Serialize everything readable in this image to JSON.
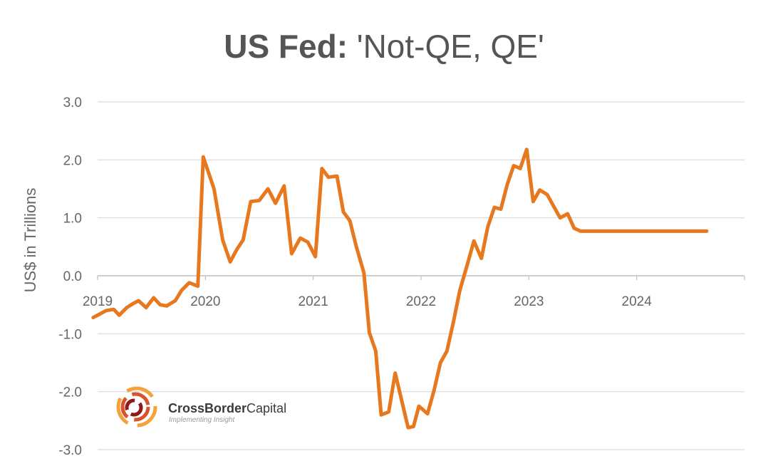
{
  "title": {
    "bold": "US Fed:",
    "rest": "'Not-QE, QE'"
  },
  "logo": {
    "name_bold": "CrossBorder",
    "name_rest": "Capital",
    "tagline": "Implementing Insight"
  },
  "colors": {
    "line": "#E8781E",
    "grid": "#d9d9d9",
    "text": "#666666"
  },
  "chart_data": {
    "type": "line",
    "title": "US Fed: 'Not-QE, QE'",
    "xlabel": "",
    "ylabel": "US$ in Trillions",
    "ylim": [
      -3.0,
      3.0
    ],
    "yticks": [
      3.0,
      2.0,
      1.0,
      0.0,
      -1.0,
      -2.0,
      -3.0
    ],
    "ytick_labels": [
      "3.0",
      "2.0",
      "1.0",
      "0.0",
      "-1.0",
      "-2.0",
      "-3.0"
    ],
    "xlim": [
      2019.0,
      2025.0
    ],
    "xticks": [
      2019,
      2020,
      2021,
      2022,
      2023,
      2024
    ],
    "xtick_labels": [
      "2019",
      "2020",
      "2021",
      "2022",
      "2023",
      "2024"
    ],
    "grid": true,
    "series": [
      {
        "name": "US Fed",
        "x": [
          2018.96,
          2019.03,
          2019.08,
          2019.15,
          2019.2,
          2019.27,
          2019.33,
          2019.38,
          2019.45,
          2019.52,
          2019.58,
          2019.64,
          2019.72,
          2019.78,
          2019.85,
          2019.93,
          2019.98,
          2020.08,
          2020.16,
          2020.23,
          2020.29,
          2020.35,
          2020.42,
          2020.5,
          2020.58,
          2020.65,
          2020.73,
          2020.8,
          2020.88,
          2020.95,
          2021.02,
          2021.08,
          2021.14,
          2021.22,
          2021.28,
          2021.34,
          2021.4,
          2021.47,
          2021.52,
          2021.58,
          2021.63,
          2021.7,
          2021.76,
          2021.82,
          2021.88,
          2021.93,
          2021.98,
          2022.06,
          2022.12,
          2022.18,
          2022.24,
          2022.3,
          2022.36,
          2022.43,
          2022.49,
          2022.56,
          2022.62,
          2022.68,
          2022.74,
          2022.8,
          2022.86,
          2022.92,
          2022.98,
          2023.04,
          2023.1,
          2023.17,
          2023.23,
          2023.29,
          2023.36,
          2023.42,
          2023.48,
          2023.54,
          2023.61,
          2023.67,
          2023.73,
          2023.8,
          2023.86,
          2023.92,
          2023.97,
          2024.02,
          2024.07,
          2024.12,
          2024.18,
          2024.24,
          2024.3,
          2024.36,
          2024.42,
          2024.48,
          2024.54,
          2024.6,
          2024.65,
          2024.72,
          2024.78
        ],
        "values": [
          -0.72,
          -0.65,
          -0.6,
          -0.58,
          -0.68,
          -0.55,
          -0.48,
          -0.43,
          -0.55,
          -0.38,
          -0.5,
          -0.52,
          -0.43,
          -0.25,
          -0.12,
          -0.18,
          2.05,
          1.5,
          0.62,
          0.24,
          0.45,
          0.62,
          1.28,
          1.3,
          1.5,
          1.25,
          1.55,
          0.38,
          0.65,
          0.58,
          0.33,
          1.85,
          1.7,
          1.72,
          1.1,
          0.95,
          0.5,
          0.05,
          -0.98,
          -1.3,
          -2.4,
          -2.35,
          -1.68,
          -2.15,
          -2.62,
          -2.6,
          -2.25,
          -2.38,
          -1.98,
          -1.5,
          -1.3,
          -0.8,
          -0.25,
          0.2,
          0.6,
          0.3,
          0.85,
          1.18,
          1.15,
          1.58,
          1.9,
          1.85,
          2.18,
          1.28,
          1.48,
          1.4,
          1.2,
          1.0,
          1.07,
          0.82,
          0.77,
          0.77,
          0.77,
          0.77,
          0.77,
          0.77,
          0.77,
          0.77,
          0.77,
          0.77,
          0.77,
          0.77,
          0.77,
          0.77,
          0.77,
          0.77,
          0.77,
          0.77,
          0.77,
          0.77,
          0.77,
          0.77,
          0.77
        ]
      }
    ]
  }
}
